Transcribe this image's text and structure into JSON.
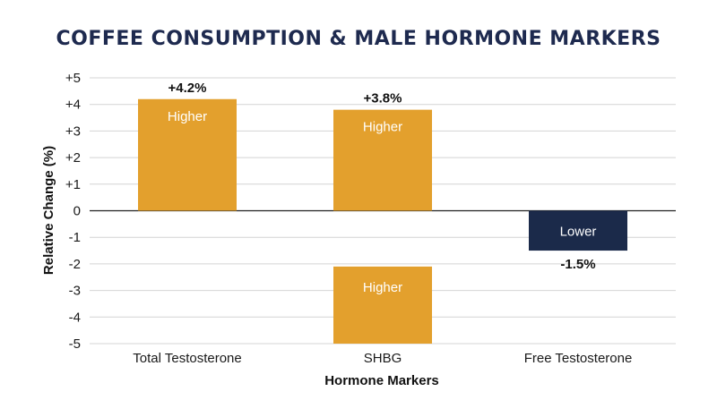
{
  "chart_data": {
    "type": "bar",
    "title": "COFFEE CONSUMPTION & MALE HORMONE MARKERS",
    "xlabel": "Hormone Markers",
    "ylabel": "Relative Change (%)",
    "ylim": [
      -5,
      5
    ],
    "yticks": [
      "+5",
      "+4",
      "+3",
      "+2",
      "+1",
      "0",
      "-1",
      "-2",
      "-3",
      "-4",
      "-5"
    ],
    "categories": [
      "Total Testosterone",
      "SHBG",
      "Free Testosterone"
    ],
    "bars": [
      {
        "category": "Total Testosterone",
        "from": 0,
        "to": 4.2,
        "label": "+4.2%",
        "inner_text": "Higher",
        "color": "#e3a02d"
      },
      {
        "category": "SHBG",
        "from": 0,
        "to": 3.8,
        "label": "+3.8%",
        "inner_text": "Higher",
        "color": "#e3a02d"
      },
      {
        "category": "SHBG",
        "from": -2.1,
        "to": -5,
        "label": "",
        "inner_text": "Higher",
        "color": "#e3a02d"
      },
      {
        "category": "Free Testosterone",
        "from": 0,
        "to": -1.5,
        "label": "-1.5%",
        "inner_text": "Lower",
        "color": "#1b2a4a"
      }
    ],
    "grid": true
  }
}
